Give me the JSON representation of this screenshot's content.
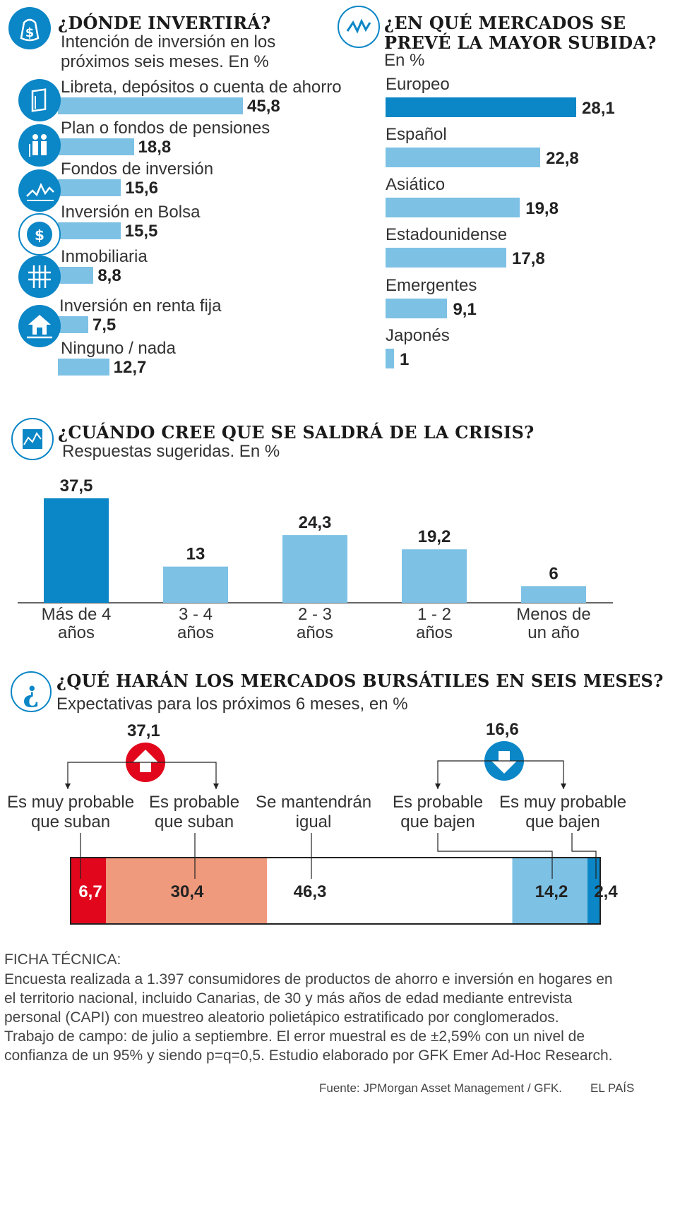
{
  "donde": {
    "title": "¿DÓNDE INVERTIRÁ?",
    "subtitle": [
      "Intención de inversión en los",
      "próximos seis meses. En %"
    ],
    "icons": [
      "dollar-bag-icon",
      "passbook-icon",
      "pension-couple-icon",
      "fund-chart-icon",
      "dollar-bag-icon",
      "building-icon",
      "house-hand-icon"
    ]
  },
  "mercados": {
    "title": [
      "¿EN QUÉ MERCADOS SE",
      "PREVÉ LA MAYOR SUBIDA?"
    ],
    "subtitle": "En %",
    "icon": "pulse-icon"
  },
  "crisis": {
    "title": "¿CUÁNDO CREE QUE SE SALDRÁ DE LA CRISIS?",
    "subtitle": "Respuestas sugeridas. En %",
    "icon": "chart-icon"
  },
  "bolsa": {
    "title": "¿QUÉ HARÁN LOS MERCADOS BURSÁTILES EN SEIS MESES?",
    "subtitle": "Expectativas para los próximos 6 meses, en %",
    "icon": "question-icon",
    "up_total": "37,1",
    "down_total": "16,6"
  },
  "chart_data": [
    {
      "type": "bar",
      "orientation": "horizontal",
      "title": "¿DÓNDE INVERTIRÁ?",
      "categories": [
        "Libreta, depósitos o cuenta de ahorro",
        "Plan o fondos de pensiones",
        "Fondos de inversión",
        "Inversión en Bolsa",
        "Inmobiliaria",
        "Inversión en renta fija",
        "Ninguno / nada"
      ],
      "values": [
        45.8,
        18.8,
        15.6,
        15.5,
        8.8,
        7.5,
        12.7
      ],
      "labels": [
        "45,8",
        "18,8",
        "15,6",
        "15,5",
        "8,8",
        "7,5",
        "12,7"
      ],
      "unit": "%"
    },
    {
      "type": "bar",
      "orientation": "horizontal",
      "title": "¿EN QUÉ MERCADOS SE PREVÉ LA MAYOR SUBIDA?",
      "categories": [
        "Europeo",
        "Español",
        "Asiático",
        "Estadounidense",
        "Emergentes",
        "Japonés"
      ],
      "values": [
        28.1,
        22.8,
        19.8,
        17.8,
        9.1,
        1
      ],
      "labels": [
        "28,1",
        "22,8",
        "19,8",
        "17,8",
        "9,1",
        "1"
      ],
      "highlight": 0,
      "unit": "%"
    },
    {
      "type": "bar",
      "orientation": "vertical",
      "title": "¿CUÁNDO CREE QUE SE SALDRÁ DE LA CRISIS?",
      "categories": [
        [
          "Más de 4",
          "años"
        ],
        [
          "3 - 4",
          "años"
        ],
        [
          "2 - 3",
          "años"
        ],
        [
          "1 - 2",
          "años"
        ],
        [
          "Menos de",
          "un año"
        ]
      ],
      "values": [
        37.5,
        13,
        24.3,
        19.2,
        6
      ],
      "labels": [
        "37,5",
        "13",
        "24,3",
        "19,2",
        "6"
      ],
      "highlight": 0,
      "unit": "%"
    },
    {
      "type": "bar",
      "orientation": "stacked-horizontal",
      "title": "¿QUÉ HARÁN LOS MERCADOS BURSÁTILES EN SEIS MESES?",
      "categories": [
        [
          "Es muy probable",
          "que suban"
        ],
        [
          "Es probable",
          "que suban"
        ],
        [
          "Se mantendrán",
          "igual"
        ],
        [
          "Es probable",
          "que bajen"
        ],
        [
          "Es muy probable",
          "que bajen"
        ]
      ],
      "values": [
        6.7,
        30.4,
        46.3,
        14.2,
        2.4
      ],
      "labels": [
        "6,7",
        "30,4",
        "46,3",
        "14,2",
        "2,4"
      ],
      "colors": [
        "#e2061c",
        "#ef9a7c",
        "#ffffff",
        "#7dc1e5",
        "#0b86c6"
      ],
      "unit": "%"
    }
  ],
  "ficha": {
    "heading": "FICHA TÉCNICA:",
    "lines": [
      "Encuesta realizada a 1.397 consumidores de productos de ahorro e inversión en hogares en",
      "el territorio nacional, incluido Canarias, de 30 y más años de edad mediante entrevista",
      "personal (CAPI) con muestreo aleatorio polietápico estratificado por conglomerados.",
      "Trabajo de campo: de julio a septiembre. El error muestral es de  ±2,59% con un nivel de",
      "confianza de un 95% y siendo p=q=0,5.  Estudio elaborado por GFK Emer Ad-Hoc Research."
    ]
  },
  "footer": {
    "source": "Fuente: JPMorgan Asset Management / GFK.",
    "brand": "EL PAÍS"
  }
}
